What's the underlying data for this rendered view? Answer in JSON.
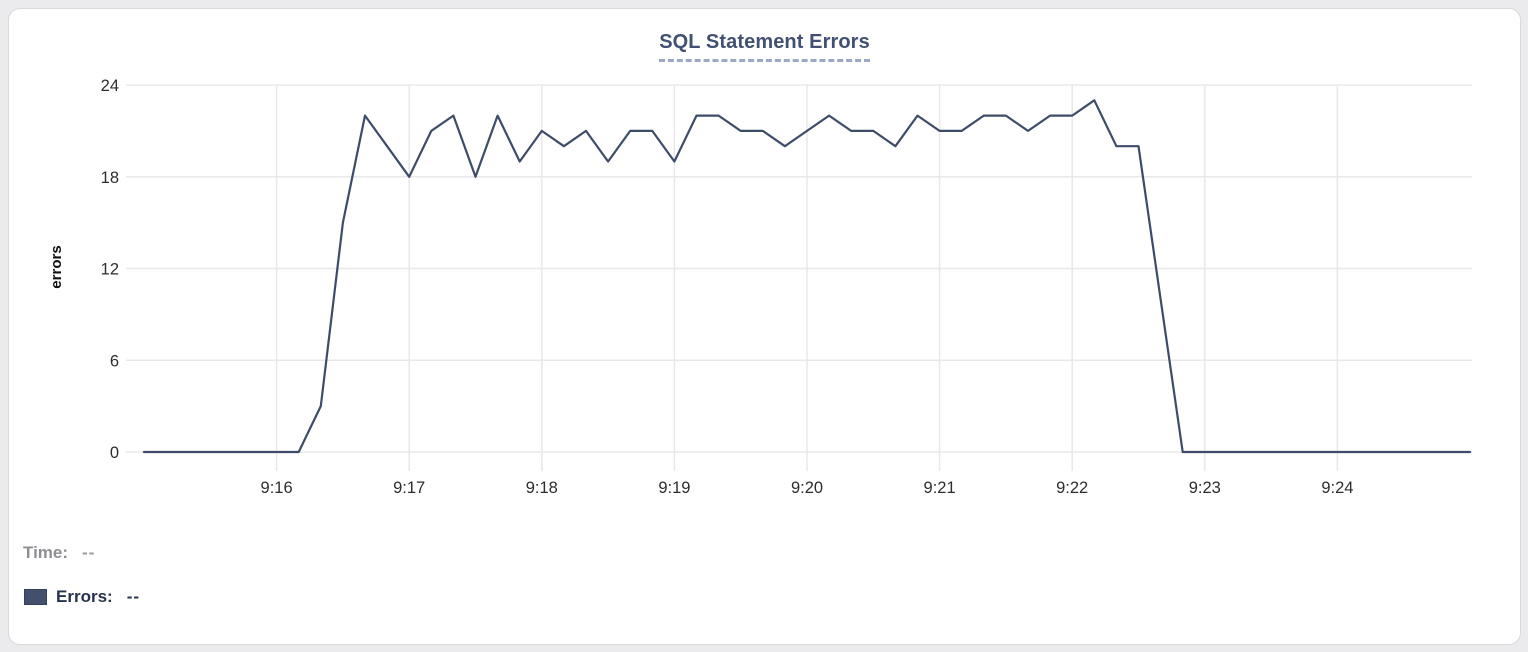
{
  "chart_data": {
    "type": "line",
    "title": "SQL Statement Errors",
    "xlabel": "",
    "ylabel": "errors",
    "ylim": [
      0,
      24
    ],
    "y_ticks": [
      0,
      6,
      12,
      18,
      24
    ],
    "x_tick_labels": [
      "9:16",
      "9:17",
      "9:18",
      "9:19",
      "9:20",
      "9:21",
      "9:22",
      "9:23",
      "9:24"
    ],
    "x_start": "9:15:00",
    "x_end": "9:25:00",
    "sample_interval_seconds": 10,
    "grid": true,
    "legend_position": "bottom-left",
    "series": [
      {
        "name": "Errors",
        "color": "#3d4c69",
        "values": [
          0,
          0,
          0,
          0,
          0,
          0,
          0,
          0,
          3,
          15,
          22,
          20,
          18,
          21,
          22,
          18,
          22,
          19,
          21,
          20,
          21,
          19,
          21,
          21,
          19,
          22,
          22,
          21,
          21,
          20,
          21,
          22,
          21,
          21,
          20,
          22,
          21,
          21,
          22,
          22,
          21,
          22,
          22,
          23,
          20,
          20,
          10,
          0,
          0,
          0,
          0,
          0,
          0,
          0,
          0,
          0,
          0,
          0,
          0,
          0,
          0
        ]
      }
    ]
  },
  "style": {
    "line_color": "#3d4c69",
    "grid_color": "#e8e8ea",
    "tick_text_color": "#2d2d30",
    "axis_label_color": "#111111",
    "title_color": "#415073",
    "title_underline_color": "#9ba8c6",
    "swatch_color": "#42506e",
    "card_background": "#ffffff",
    "page_background": "#ebebed"
  },
  "readout": {
    "time_label": "Time:",
    "time_value": "--",
    "errors_label": "Errors:",
    "errors_value": "--"
  }
}
